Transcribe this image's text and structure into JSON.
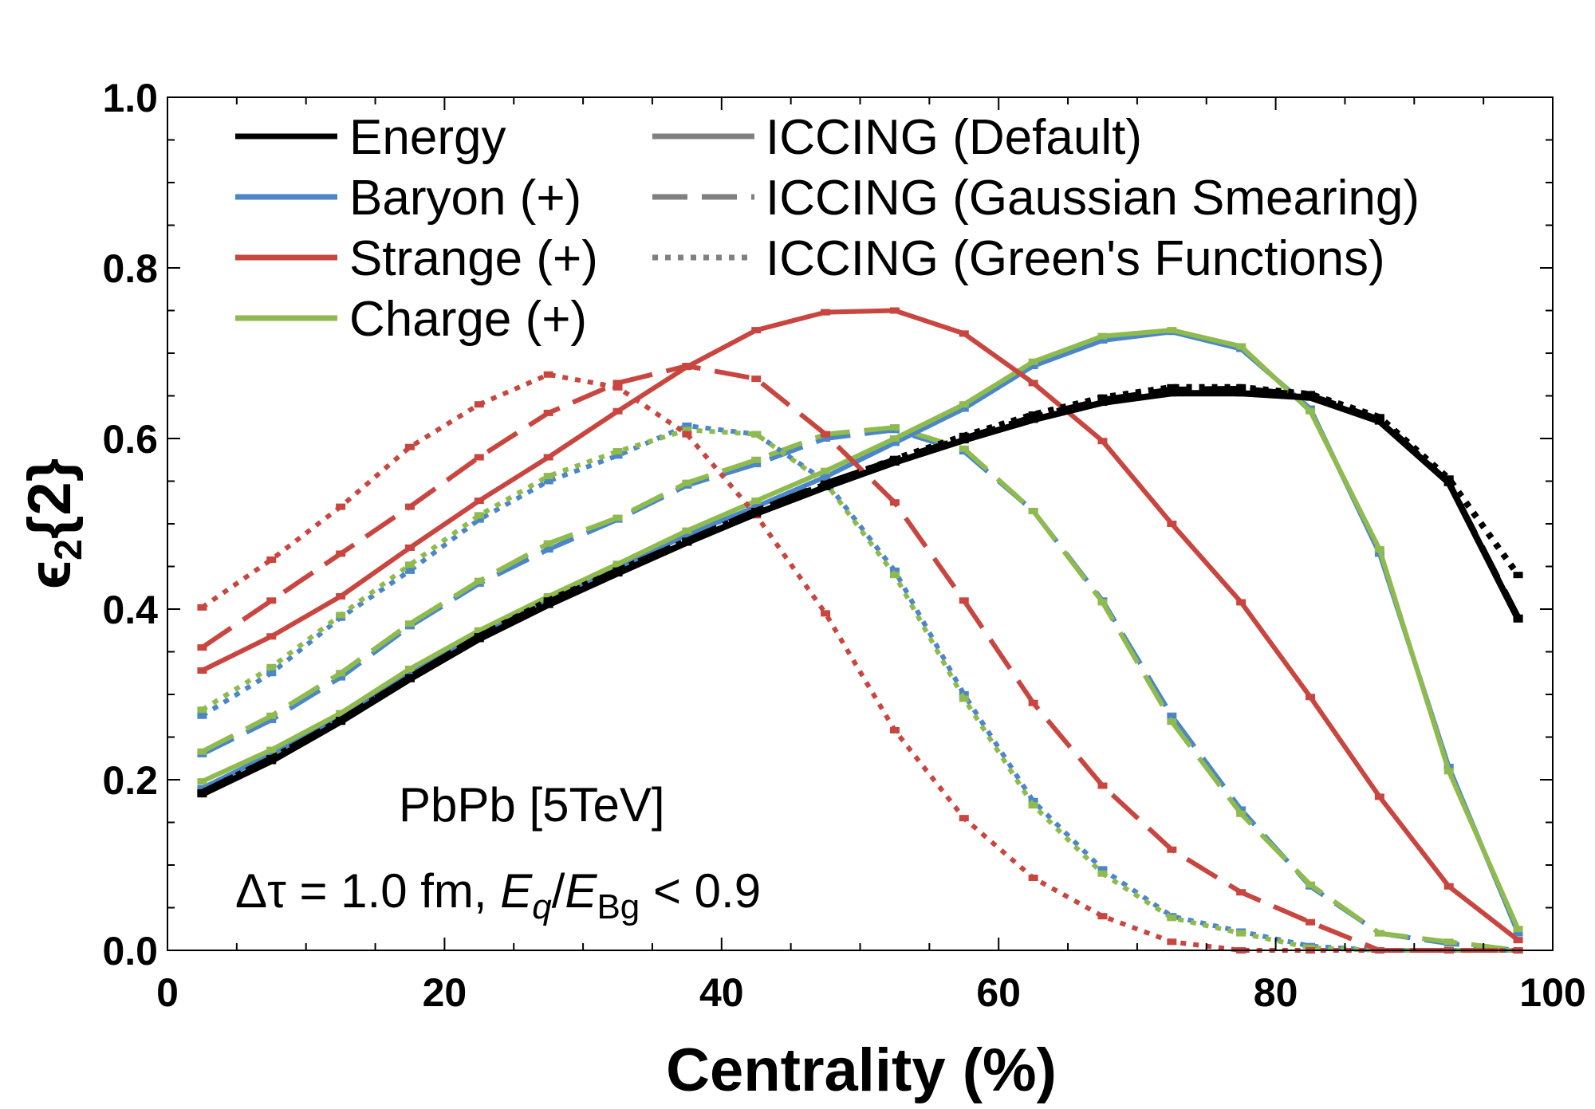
{
  "chart_data": {
    "type": "line",
    "xlabel": "Centrality (%)",
    "ylabel": "ε2{2}",
    "ylabel_parts": {
      "symbol": "ϵ",
      "sub": "2",
      "braces": "{2}"
    },
    "xlim": [
      0,
      100
    ],
    "ylim": [
      0,
      1.0
    ],
    "x_ticks": [
      0,
      20,
      40,
      60,
      80,
      100
    ],
    "x_tick_labels": [
      "0",
      "20",
      "40",
      "60",
      "80",
      "100"
    ],
    "y_ticks": [
      0,
      0.2,
      0.4,
      0.6,
      0.8,
      1.0
    ],
    "y_tick_labels": [
      "0.0",
      "0.2",
      "0.4",
      "0.6",
      "0.8",
      "1.0"
    ],
    "x": [
      2.5,
      7.5,
      12.5,
      17.5,
      22.5,
      27.5,
      32.5,
      37.5,
      42.5,
      47.5,
      52.5,
      57.5,
      62.5,
      67.5,
      72.5,
      77.5,
      82.5,
      87.5,
      92.5,
      97.5
    ],
    "colors": {
      "energy": "#000000",
      "baryon": "#4a86c8",
      "strange": "#c8463f",
      "charge": "#8fba4e",
      "legend_gray": "#808080"
    },
    "legend": {
      "placement": "top-left",
      "quantities": [
        {
          "label": "Energy",
          "color": "#000000"
        },
        {
          "label": "Baryon (+)",
          "color": "#4a86c8"
        },
        {
          "label": "Strange (+)",
          "color": "#c8463f"
        },
        {
          "label": "Charge (+)",
          "color": "#8fba4e"
        }
      ],
      "styles": [
        {
          "label": "ICCING (Default)",
          "dash": "solid"
        },
        {
          "label": "ICCING (Gaussian Smearing)",
          "dash": "dashed"
        },
        {
          "label": "ICCING (Green's Functions)",
          "dash": "dotted"
        }
      ]
    },
    "annotations": {
      "system": "PbPb [5TeV]",
      "params": {
        "prefix": "Δτ = 1.0 fm, ",
        "E": "E",
        "q": "q",
        "slash": "/",
        "Bg": "Bg",
        "suffix": " < 0.9"
      }
    },
    "series": [
      {
        "name": "Baryon (+) Gaussian Smearing",
        "quantity": "baryon",
        "dash": "dashed",
        "color": "#4a86c8",
        "values": [
          0.23,
          0.27,
          0.32,
          0.38,
          0.43,
          0.47,
          0.505,
          0.545,
          0.57,
          0.6,
          0.61,
          0.585,
          0.515,
          0.41,
          0.275,
          0.165,
          0.075,
          0.02,
          0.008,
          0.0
        ]
      },
      {
        "name": "Charge (+) Gaussian Smearing",
        "quantity": "charge",
        "dash": "dashed",
        "color": "#8fba4e",
        "values": [
          0.233,
          0.275,
          0.325,
          0.383,
          0.433,
          0.477,
          0.507,
          0.548,
          0.575,
          0.605,
          0.613,
          0.588,
          0.515,
          0.408,
          0.268,
          0.16,
          0.077,
          0.02,
          0.01,
          0.0
        ]
      },
      {
        "name": "Baryon (+) Green's Functions",
        "quantity": "baryon",
        "dash": "dotted",
        "color": "#4a86c8",
        "values": [
          0.275,
          0.325,
          0.39,
          0.445,
          0.505,
          0.55,
          0.58,
          0.615,
          0.605,
          0.55,
          0.445,
          0.3,
          0.175,
          0.095,
          0.04,
          0.022,
          0.005,
          0.0,
          0.0,
          0.0
        ]
      },
      {
        "name": "Charge (+) Green's Functions",
        "quantity": "charge",
        "dash": "dotted",
        "color": "#8fba4e",
        "values": [
          0.282,
          0.332,
          0.393,
          0.452,
          0.51,
          0.556,
          0.585,
          0.61,
          0.605,
          0.548,
          0.44,
          0.295,
          0.17,
          0.09,
          0.038,
          0.02,
          0.003,
          0.0,
          0.0,
          0.0
        ]
      },
      {
        "name": "Baryon (+) Default",
        "quantity": "baryon",
        "dash": "solid",
        "color": "#4a86c8",
        "values": [
          0.19,
          0.23,
          0.275,
          0.325,
          0.37,
          0.41,
          0.448,
          0.487,
          0.52,
          0.555,
          0.595,
          0.635,
          0.685,
          0.715,
          0.725,
          0.705,
          0.635,
          0.465,
          0.215,
          0.02
        ]
      },
      {
        "name": "Charge (+) Default",
        "quantity": "charge",
        "dash": "solid",
        "color": "#8fba4e",
        "values": [
          0.198,
          0.235,
          0.278,
          0.33,
          0.375,
          0.415,
          0.453,
          0.492,
          0.527,
          0.562,
          0.6,
          0.64,
          0.69,
          0.72,
          0.727,
          0.708,
          0.632,
          0.47,
          0.21,
          0.025
        ]
      },
      {
        "name": "Strange (+) Gaussian Smearing",
        "quantity": "strange",
        "dash": "dashed",
        "color": "#c8463f",
        "values": [
          0.355,
          0.41,
          0.465,
          0.52,
          0.578,
          0.63,
          0.665,
          0.685,
          0.67,
          0.605,
          0.525,
          0.41,
          0.29,
          0.193,
          0.118,
          0.068,
          0.033,
          0.0,
          0.0,
          0.0
        ]
      },
      {
        "name": "Strange (+) Green's Functions",
        "quantity": "strange",
        "dash": "dotted",
        "color": "#c8463f",
        "values": [
          0.402,
          0.458,
          0.52,
          0.59,
          0.64,
          0.675,
          0.66,
          0.605,
          0.51,
          0.395,
          0.258,
          0.155,
          0.085,
          0.04,
          0.01,
          0.0,
          0.0,
          0.0,
          0.0,
          0.0
        ]
      },
      {
        "name": "Strange (+) Default",
        "quantity": "strange",
        "dash": "solid",
        "color": "#c8463f",
        "values": [
          0.328,
          0.368,
          0.415,
          0.472,
          0.527,
          0.578,
          0.632,
          0.684,
          0.727,
          0.748,
          0.75,
          0.723,
          0.665,
          0.597,
          0.5,
          0.408,
          0.297,
          0.18,
          0.075,
          0.012
        ]
      },
      {
        "name": "Energy Gaussian Smearing",
        "quantity": "energy",
        "dash": "dashed",
        "color": "#000000",
        "values": [
          0.185,
          0.225,
          0.27,
          0.32,
          0.368,
          0.408,
          0.445,
          0.48,
          0.515,
          0.547,
          0.575,
          0.6,
          0.625,
          0.645,
          0.657,
          0.658,
          0.65,
          0.622,
          0.548,
          0.39
        ]
      },
      {
        "name": "Energy Green's Functions",
        "quantity": "energy",
        "dash": "dotted",
        "color": "#000000",
        "values": [
          0.185,
          0.225,
          0.27,
          0.32,
          0.368,
          0.41,
          0.445,
          0.48,
          0.515,
          0.546,
          0.576,
          0.603,
          0.628,
          0.648,
          0.66,
          0.66,
          0.652,
          0.625,
          0.553,
          0.44
        ]
      },
      {
        "name": "Energy Default",
        "quantity": "energy",
        "dash": "solid",
        "color": "#000000",
        "values": [
          0.183,
          0.222,
          0.268,
          0.318,
          0.365,
          0.405,
          0.442,
          0.478,
          0.512,
          0.543,
          0.572,
          0.598,
          0.622,
          0.642,
          0.653,
          0.653,
          0.648,
          0.62,
          0.548,
          0.388
        ]
      }
    ]
  }
}
